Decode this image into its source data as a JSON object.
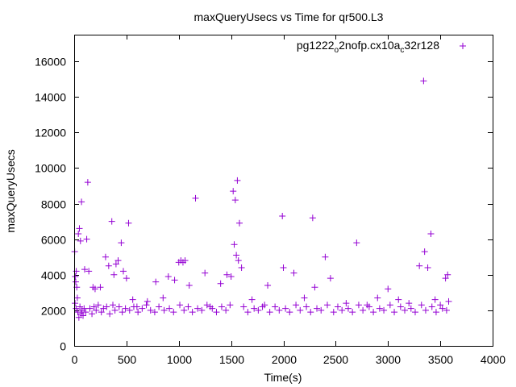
{
  "chart_data": {
    "type": "scatter",
    "title": "maxQueryUsecs vs Time for qr500.L3",
    "xlabel": "Time(s)",
    "ylabel": "maxQueryUsecs",
    "xlim": [
      0,
      4000
    ],
    "ylim": [
      0,
      17500
    ],
    "xticks": [
      0,
      500,
      1000,
      1500,
      2000,
      2500,
      3000,
      3500,
      4000
    ],
    "yticks": [
      0,
      2000,
      4000,
      6000,
      8000,
      10000,
      12000,
      14000,
      16000
    ],
    "xtick_labels": [
      "0",
      "500",
      "1000",
      "1500",
      "2000",
      "2500",
      "3000",
      "3500",
      "4000"
    ],
    "ytick_labels": [
      "0",
      "2000",
      "4000",
      "6000",
      "8000",
      "10000",
      "12000",
      "14000",
      "16000"
    ],
    "grid": false,
    "legend_position": "top-right",
    "series": [
      {
        "name_parts": {
          "a": "pg1222",
          "sub1": "o",
          "b": "2nofp.cx10a",
          "sub2": "c",
          "c": "32r128"
        },
        "color": "#9400d3",
        "marker": "plus",
        "points": [
          [
            5,
            5300
          ],
          [
            10,
            3900
          ],
          [
            15,
            3600
          ],
          [
            20,
            4200
          ],
          [
            25,
            3300
          ],
          [
            30,
            2700
          ],
          [
            40,
            6300
          ],
          [
            50,
            6600
          ],
          [
            60,
            5900
          ],
          [
            70,
            8100
          ],
          [
            100,
            4300
          ],
          [
            120,
            6000
          ],
          [
            130,
            9200
          ],
          [
            140,
            4200
          ],
          [
            180,
            3300
          ],
          [
            200,
            3200
          ],
          [
            250,
            3300
          ],
          [
            300,
            5000
          ],
          [
            330,
            4500
          ],
          [
            360,
            7000
          ],
          [
            380,
            4000
          ],
          [
            400,
            4600
          ],
          [
            420,
            4800
          ],
          [
            450,
            5800
          ],
          [
            470,
            4200
          ],
          [
            500,
            3800
          ],
          [
            520,
            6900
          ],
          [
            560,
            2600
          ],
          [
            600,
            2200
          ],
          [
            700,
            2500
          ],
          [
            780,
            3600
          ],
          [
            850,
            2700
          ],
          [
            900,
            3900
          ],
          [
            960,
            3700
          ],
          [
            1000,
            4700
          ],
          [
            1020,
            4800
          ],
          [
            1040,
            4700
          ],
          [
            1060,
            4800
          ],
          [
            1100,
            3400
          ],
          [
            1160,
            8300
          ],
          [
            1250,
            4100
          ],
          [
            1300,
            2200
          ],
          [
            1400,
            3500
          ],
          [
            1460,
            4000
          ],
          [
            1500,
            3900
          ],
          [
            1520,
            8700
          ],
          [
            1530,
            5700
          ],
          [
            1540,
            8200
          ],
          [
            1550,
            5100
          ],
          [
            1560,
            9300
          ],
          [
            1570,
            4800
          ],
          [
            1580,
            6900
          ],
          [
            1600,
            4400
          ],
          [
            1700,
            2600
          ],
          [
            1800,
            2200
          ],
          [
            1850,
            3400
          ],
          [
            1990,
            7300
          ],
          [
            2000,
            4400
          ],
          [
            2100,
            4100
          ],
          [
            2200,
            2700
          ],
          [
            2280,
            7200
          ],
          [
            2300,
            3300
          ],
          [
            2400,
            5000
          ],
          [
            2450,
            3800
          ],
          [
            2600,
            2400
          ],
          [
            2700,
            5800
          ],
          [
            2800,
            2300
          ],
          [
            2900,
            2700
          ],
          [
            3000,
            3200
          ],
          [
            3100,
            2600
          ],
          [
            3200,
            2400
          ],
          [
            3300,
            4500
          ],
          [
            3340,
            14900
          ],
          [
            3350,
            5300
          ],
          [
            3380,
            4400
          ],
          [
            3410,
            6300
          ],
          [
            3450,
            2600
          ],
          [
            3500,
            2300
          ],
          [
            3550,
            3800
          ],
          [
            3570,
            4000
          ],
          [
            3580,
            2500
          ],
          [
            8,
            2400
          ],
          [
            18,
            2100
          ],
          [
            35,
            1900
          ],
          [
            45,
            1600
          ],
          [
            55,
            2200
          ],
          [
            65,
            1800
          ],
          [
            75,
            2000
          ],
          [
            85,
            1700
          ],
          [
            95,
            2100
          ],
          [
            110,
            1900
          ],
          [
            150,
            2100
          ],
          [
            170,
            1800
          ],
          [
            190,
            2200
          ],
          [
            210,
            2000
          ],
          [
            230,
            2300
          ],
          [
            260,
            1900
          ],
          [
            280,
            2100
          ],
          [
            310,
            2200
          ],
          [
            340,
            1800
          ],
          [
            370,
            2300
          ],
          [
            390,
            2000
          ],
          [
            430,
            2200
          ],
          [
            460,
            1900
          ],
          [
            490,
            2100
          ],
          [
            530,
            2000
          ],
          [
            570,
            2200
          ],
          [
            610,
            1900
          ],
          [
            650,
            2100
          ],
          [
            690,
            2300
          ],
          [
            730,
            2000
          ],
          [
            770,
            1900
          ],
          [
            810,
            2200
          ],
          [
            860,
            2000
          ],
          [
            910,
            2100
          ],
          [
            950,
            1900
          ],
          [
            1010,
            2300
          ],
          [
            1050,
            2000
          ],
          [
            1090,
            2200
          ],
          [
            1130,
            1900
          ],
          [
            1180,
            2100
          ],
          [
            1220,
            2000
          ],
          [
            1270,
            2300
          ],
          [
            1320,
            2100
          ],
          [
            1360,
            1900
          ],
          [
            1410,
            2200
          ],
          [
            1450,
            2000
          ],
          [
            1490,
            2300
          ],
          [
            1620,
            2200
          ],
          [
            1660,
            1900
          ],
          [
            1720,
            2100
          ],
          [
            1760,
            2000
          ],
          [
            1820,
            2300
          ],
          [
            1870,
            1900
          ],
          [
            1920,
            2200
          ],
          [
            1960,
            2000
          ],
          [
            2020,
            2100
          ],
          [
            2060,
            1900
          ],
          [
            2120,
            2300
          ],
          [
            2160,
            2000
          ],
          [
            2220,
            2200
          ],
          [
            2260,
            1900
          ],
          [
            2320,
            2100
          ],
          [
            2360,
            2000
          ],
          [
            2420,
            2300
          ],
          [
            2480,
            1900
          ],
          [
            2520,
            2200
          ],
          [
            2560,
            2000
          ],
          [
            2620,
            2100
          ],
          [
            2660,
            1900
          ],
          [
            2720,
            2300
          ],
          [
            2760,
            2000
          ],
          [
            2820,
            2200
          ],
          [
            2860,
            1900
          ],
          [
            2920,
            2100
          ],
          [
            2960,
            2000
          ],
          [
            3020,
            2300
          ],
          [
            3060,
            1900
          ],
          [
            3120,
            2200
          ],
          [
            3160,
            2000
          ],
          [
            3220,
            2100
          ],
          [
            3260,
            1900
          ],
          [
            3320,
            2300
          ],
          [
            3360,
            2000
          ],
          [
            3420,
            2200
          ],
          [
            3460,
            1900
          ],
          [
            3520,
            2100
          ],
          [
            3560,
            2000
          ]
        ]
      }
    ]
  }
}
